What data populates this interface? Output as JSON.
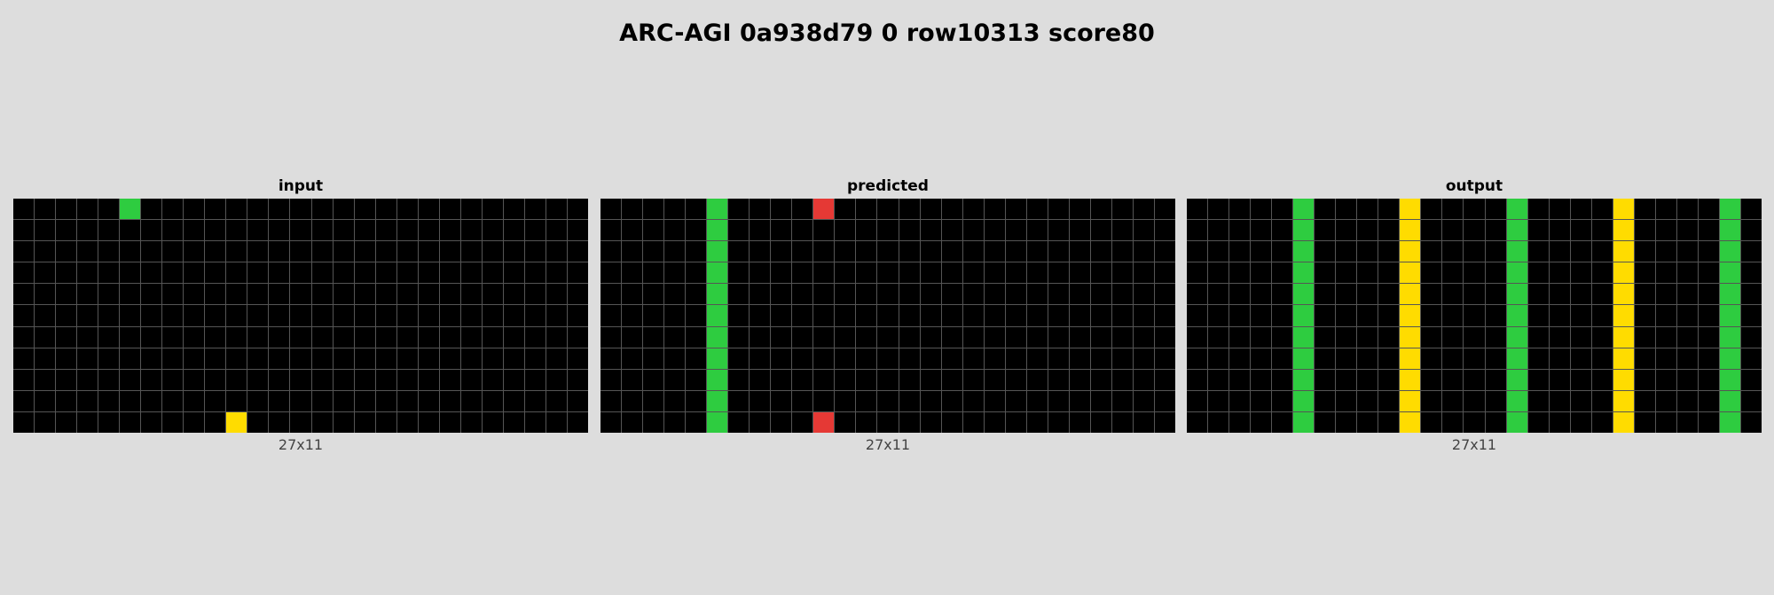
{
  "title": "ARC-AGI 0a938d79 0 row10313 score80",
  "palette": {
    "0": "#000000",
    "2": "#e53935",
    "3": "#2ecc40",
    "4": "#ffdc00"
  },
  "panels": [
    {
      "name": "input",
      "label": "input",
      "dims": "27x11",
      "cols": 27,
      "rows": 11,
      "cells": [
        {
          "r": 0,
          "c": 5,
          "v": 3
        },
        {
          "r": 10,
          "c": 10,
          "v": 4
        }
      ],
      "columns": []
    },
    {
      "name": "predicted",
      "label": "predicted",
      "dims": "27x11",
      "cols": 27,
      "rows": 11,
      "cells": [
        {
          "r": 0,
          "c": 10,
          "v": 2
        },
        {
          "r": 10,
          "c": 10,
          "v": 2
        }
      ],
      "columns": [
        {
          "c": 5,
          "v": 3
        }
      ]
    },
    {
      "name": "output",
      "label": "output",
      "dims": "27x11",
      "cols": 27,
      "rows": 11,
      "cells": [],
      "columns": [
        {
          "c": 5,
          "v": 3
        },
        {
          "c": 10,
          "v": 4
        },
        {
          "c": 15,
          "v": 3
        },
        {
          "c": 20,
          "v": 4
        },
        {
          "c": 25,
          "v": 3
        }
      ]
    }
  ]
}
